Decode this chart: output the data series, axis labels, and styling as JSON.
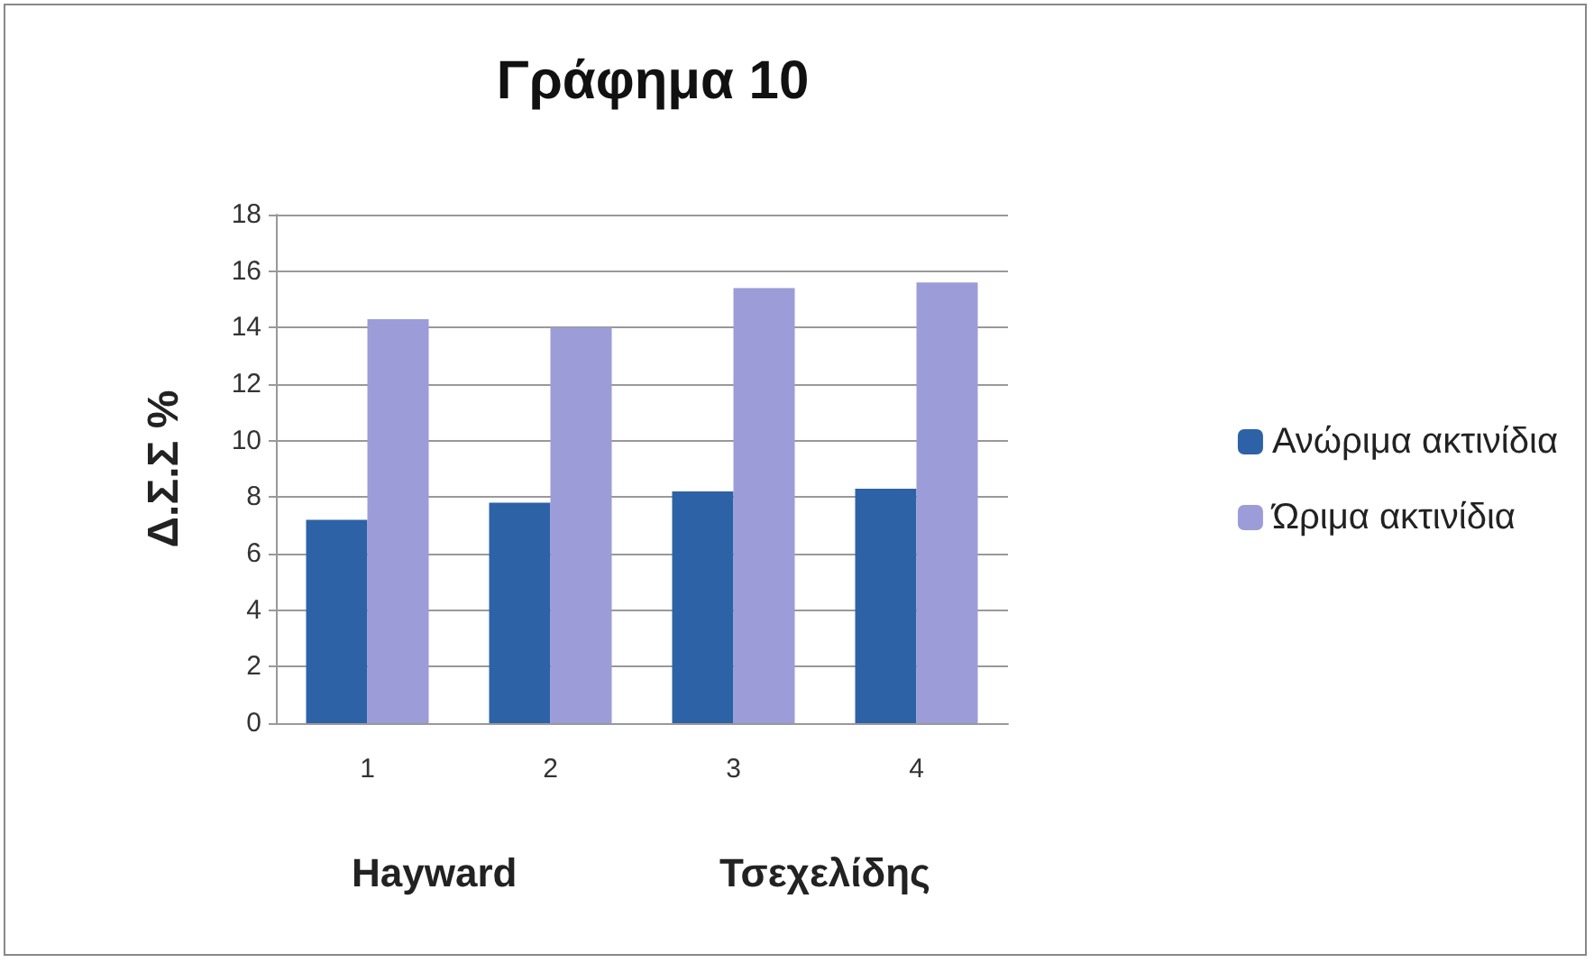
{
  "chart_data": {
    "type": "bar",
    "title": "Γράφημα 10",
    "ylabel": "Δ.Σ.Σ %",
    "categories": [
      "1",
      "2",
      "3",
      "4"
    ],
    "series": [
      {
        "name": "Ανώριμα ακτινίδια",
        "color": "#2e62a6",
        "values": [
          7.2,
          7.8,
          8.2,
          8.3
        ]
      },
      {
        "name": "Ώριμα ακτινίδια",
        "color": "#9c9cd8",
        "values": [
          14.3,
          14.0,
          15.4,
          15.6
        ]
      }
    ],
    "ylim": [
      0,
      18
    ],
    "yticks": [
      0,
      2,
      4,
      6,
      8,
      10,
      12,
      14,
      16,
      18
    ],
    "grid": "y",
    "legend": "right",
    "annotations": [
      "Hayward",
      "Τσεχελίδης"
    ]
  }
}
